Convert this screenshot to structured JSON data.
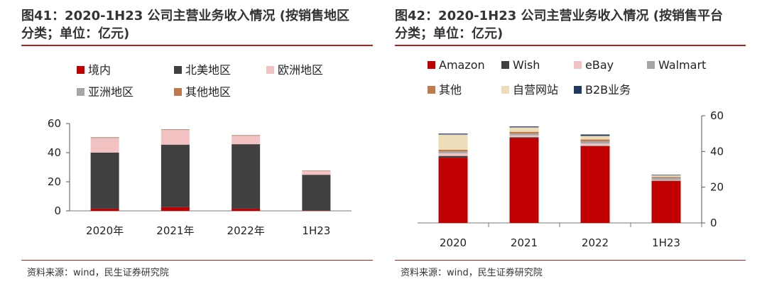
{
  "charts": [
    {
      "figure_title_line1": "图41：2020-1H23 公司主营业务收入情况 (按销售地区",
      "figure_title_line2": "分类；单位：亿元)",
      "source": "资料来源：wind，民生证券研究院"
    },
    {
      "figure_title_line1": "图42：2020-1H23 公司主营业务收入情况 (按销售平台",
      "figure_title_line2": "分类；单位：亿元)",
      "source": "资料来源：wind，民生证券研究院"
    }
  ],
  "chart_data": [
    {
      "type": "bar",
      "stacked": true,
      "title": "2020-1H23 公司主营业务收入情况 (按销售地区分类；单位：亿元)",
      "categories": [
        "2020年",
        "2021年",
        "2022年",
        "1H23"
      ],
      "ylim": [
        0,
        60
      ],
      "yticks": [
        0,
        20,
        40,
        60
      ],
      "axis_side": "left",
      "legend_position": "top",
      "series": [
        {
          "name": "境内",
          "color": "#c00000",
          "values": [
            1.5,
            2.5,
            1.5,
            0.3
          ]
        },
        {
          "name": "北美地区",
          "color": "#404040",
          "values": [
            38.5,
            43.0,
            44.3,
            24.5
          ]
        },
        {
          "name": "欧洲地区",
          "color": "#f2c2c2",
          "values": [
            10.0,
            10.0,
            5.7,
            2.7
          ]
        },
        {
          "name": "亚洲地区",
          "color": "#a6a6a6",
          "values": [
            0.3,
            0.3,
            0.3,
            0.1
          ]
        },
        {
          "name": "其他地区",
          "color": "#c0794f",
          "values": [
            0.3,
            0.3,
            0.3,
            0.1
          ]
        }
      ]
    },
    {
      "type": "bar",
      "stacked": true,
      "title": "2020-1H23 公司主营业务收入情况 (按销售平台分类；单位：亿元)",
      "categories": [
        "2020",
        "2021",
        "2022",
        "1H23"
      ],
      "ylim": [
        0,
        60
      ],
      "yticks": [
        0,
        20,
        40,
        60
      ],
      "axis_side": "right",
      "legend_position": "top",
      "series": [
        {
          "name": "Amazon",
          "color": "#c00000",
          "values": [
            36.5,
            47.5,
            43.0,
            23.5
          ]
        },
        {
          "name": "Wish",
          "color": "#404040",
          "values": [
            1.0,
            0.5,
            0.2,
            0.1
          ]
        },
        {
          "name": "eBay",
          "color": "#f2c2c2",
          "values": [
            1.5,
            1.0,
            1.2,
            0.5
          ]
        },
        {
          "name": "Walmart",
          "color": "#a6a6a6",
          "values": [
            1.0,
            1.0,
            1.3,
            1.2
          ]
        },
        {
          "name": "其他",
          "color": "#c0794f",
          "values": [
            1.0,
            1.0,
            1.0,
            0.5
          ]
        },
        {
          "name": "自营网站",
          "color": "#eddcb8",
          "values": [
            8.5,
            2.5,
            2.0,
            0.9
          ]
        },
        {
          "name": "B2B业务",
          "color": "#1f3864",
          "values": [
            0.5,
            0.5,
            0.8,
            0.3
          ]
        }
      ]
    }
  ]
}
